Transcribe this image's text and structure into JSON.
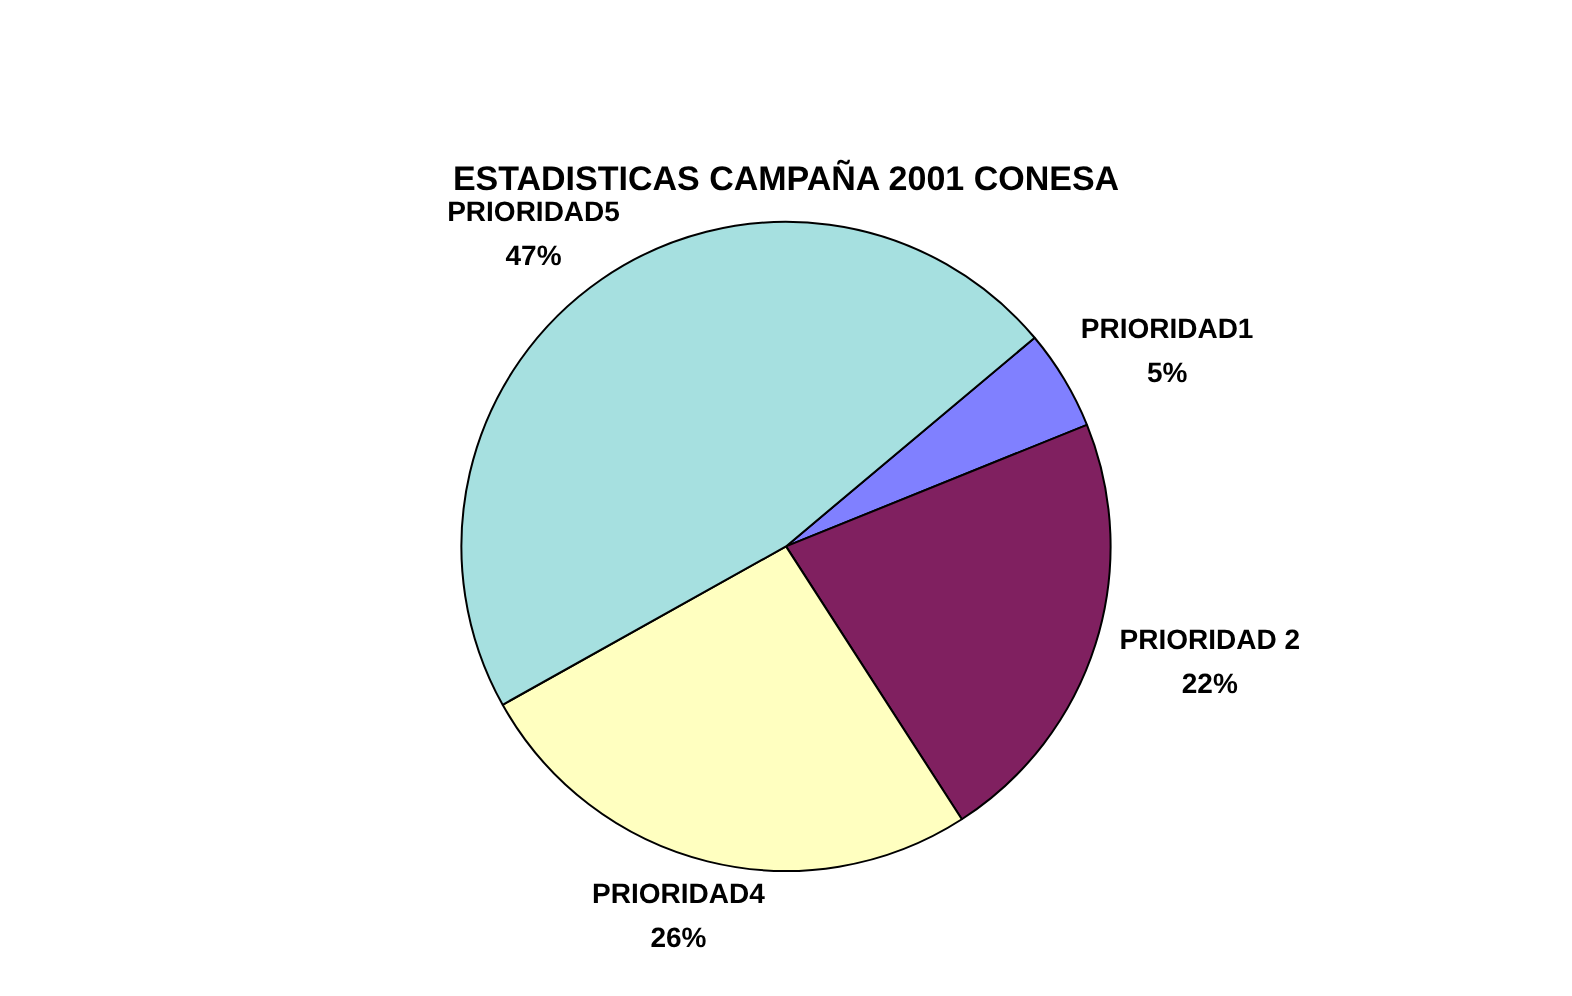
{
  "chart_data": {
    "type": "pie",
    "title": "ESTADISTICAS CAMPAÑA 2001 CONESA",
    "categories": [
      "PRIORIDAD1",
      "PRIORIDAD 2",
      "PRIORIDAD4",
      "PRIORIDAD5"
    ],
    "values": [
      5,
      22,
      26,
      47
    ],
    "value_labels": [
      "5%",
      "22%",
      "26%",
      "47%"
    ],
    "colors": [
      "#8080ff",
      "#802060",
      "#ffffc0",
      "#a6e0e0"
    ],
    "legend": false
  }
}
